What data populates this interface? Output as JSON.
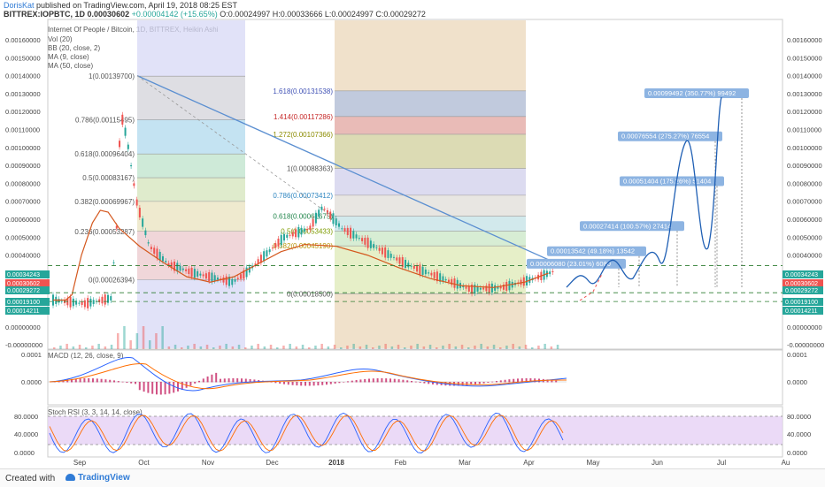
{
  "header": {
    "author": "DorisKat",
    "published": "published on TradingView.com, April 19, 2018 08:25 EST",
    "symbol_line": "BITTREX:IOPBTC, 1D",
    "last": "0.00030602",
    "change": "+0.00004142 (+15.65%)",
    "ohlc": "O:0.00024997 H:0.00033666 L:0.00024997 C:0.00029272"
  },
  "indicators": {
    "title": "Internet Of People / Bitcoin, 1D, BITTREX, Heikin Ashi",
    "lines": [
      "Vol (20)",
      "BB (20, close, 2)",
      "MA (9, close)",
      "MA (50, close)"
    ],
    "macd": "MACD (12, 26, close, 9)",
    "stoch": "Stoch RSI (3, 3, 14, 14, close)"
  },
  "footer": {
    "created": "Created with",
    "brand": "TradingView"
  },
  "colors": {
    "up": "#26a69a",
    "down": "#ef5350",
    "trend": "#5b8fd1",
    "ma50": "#d4581e",
    "ma9": "#b71c1c",
    "bb": "#3c8c9c",
    "label_bg": "#8db4e2"
  },
  "chart_data": {
    "type": "candlestick",
    "x_ticks": [
      "Sep",
      "Oct",
      "Nov",
      "Dec",
      "2018",
      "Feb",
      "Mar",
      "Apr",
      "May",
      "Jun",
      "Jul",
      "Au"
    ],
    "y_ticks": [
      "0.00160000",
      "0.00150000",
      "0.00140000",
      "0.00130000",
      "0.00120000",
      "0.00110000",
      "0.00100000",
      "0.00090000",
      "0.00080000",
      "0.00070000",
      "0.00060000",
      "0.00050000",
      "0.00040000",
      "0.00030000",
      "0.00020000",
      "0.00010000",
      "0.00000000",
      "-0.00000000"
    ],
    "price_axis_tags": [
      {
        "label": "0.00034243",
        "color": "#26a69a",
        "dashed": true
      },
      {
        "label": "0.00030602",
        "color": "#ef5350",
        "dashed": false
      },
      {
        "label": "0.00029272",
        "color": "#26a69a",
        "dashed": false
      },
      {
        "label": "0.00019100",
        "color": "#26a69a",
        "dashed": true
      },
      {
        "label": "0.00014211",
        "color": "#26a69a",
        "dashed": true
      }
    ],
    "fib_left": [
      {
        "level": "1(0.00139700)",
        "price": 0.001397
      },
      {
        "level": "0.786(0.00115495)",
        "price": 0.00115495
      },
      {
        "level": "0.618(0.00096404)",
        "price": 0.00096404
      },
      {
        "level": "0.5(0.00083167)",
        "price": 0.00083167
      },
      {
        "level": "0.382(0.00069967)",
        "price": 0.00069967
      },
      {
        "level": "0.236(0.00053287)",
        "price": 0.00053287
      },
      {
        "level": "0(0.00026394)",
        "price": 0.00026394
      }
    ],
    "fib_right": [
      {
        "level": "1.618(0.00131538)",
        "price": 0.00131538
      },
      {
        "level": "1.414(0.00117286)",
        "price": 0.00117286
      },
      {
        "level": "1.272(0.00107366)",
        "price": 0.00107366
      },
      {
        "level": "1(0.00088363)",
        "price": 0.00088363
      },
      {
        "level": "0.786(0.00073412)",
        "price": 0.00073412
      },
      {
        "level": "0.618(0.00061675)",
        "price": 0.00061675
      },
      {
        "level": "0.5(0.00053433)",
        "price": 0.00053433
      },
      {
        "level": "0.382(0.00045190)",
        "price": 0.0004519
      },
      {
        "level": "0(0.00018500)",
        "price": 0.000185
      }
    ],
    "targets": [
      {
        "label": "0.00006080 (23.01%) 6080",
        "price": 0.00035
      },
      {
        "label": "0.00013542 (49.18%) 13542",
        "price": 0.00042
      },
      {
        "label": "0.00027414 (100.57%) 27414",
        "price": 0.00056
      },
      {
        "label": "0.00051404 (175.26%) 51404",
        "price": 0.00081
      },
      {
        "label": "0.00076554 (275.27%) 76554",
        "price": 0.00106
      },
      {
        "label": "0.00099492 (350.77%) 99492",
        "price": 0.0013
      }
    ],
    "macd_ticks": [
      "0.0001",
      "0.0000"
    ],
    "stoch_ticks": [
      "80.0000",
      "40.0000",
      "0.0000"
    ],
    "ma50_path": [
      [
        0.00015,
        0
      ],
      [
        0.00015,
        0.08
      ],
      [
        0.00018,
        0.12
      ],
      [
        0.0004,
        0.18
      ],
      [
        0.00058,
        0.25
      ],
      [
        0.00065,
        0.3
      ],
      [
        0.00064,
        0.35
      ],
      [
        0.00055,
        0.42
      ],
      [
        0.00045,
        0.55
      ],
      [
        0.00036,
        0.7
      ],
      [
        0.00028,
        0.85
      ],
      [
        0.00025,
        1.0
      ],
      [
        0.00028,
        1.15
      ],
      [
        0.00035,
        1.3
      ],
      [
        0.00042,
        1.45
      ],
      [
        0.00046,
        1.6
      ],
      [
        0.00045,
        1.8
      ],
      [
        0.0004,
        2.0
      ],
      [
        0.00033,
        2.2
      ],
      [
        0.00027,
        2.4
      ],
      [
        0.00023,
        2.6
      ],
      [
        0.00022,
        2.8
      ],
      [
        0.00025,
        3.0
      ],
      [
        0.0003,
        3.15
      ]
    ]
  }
}
